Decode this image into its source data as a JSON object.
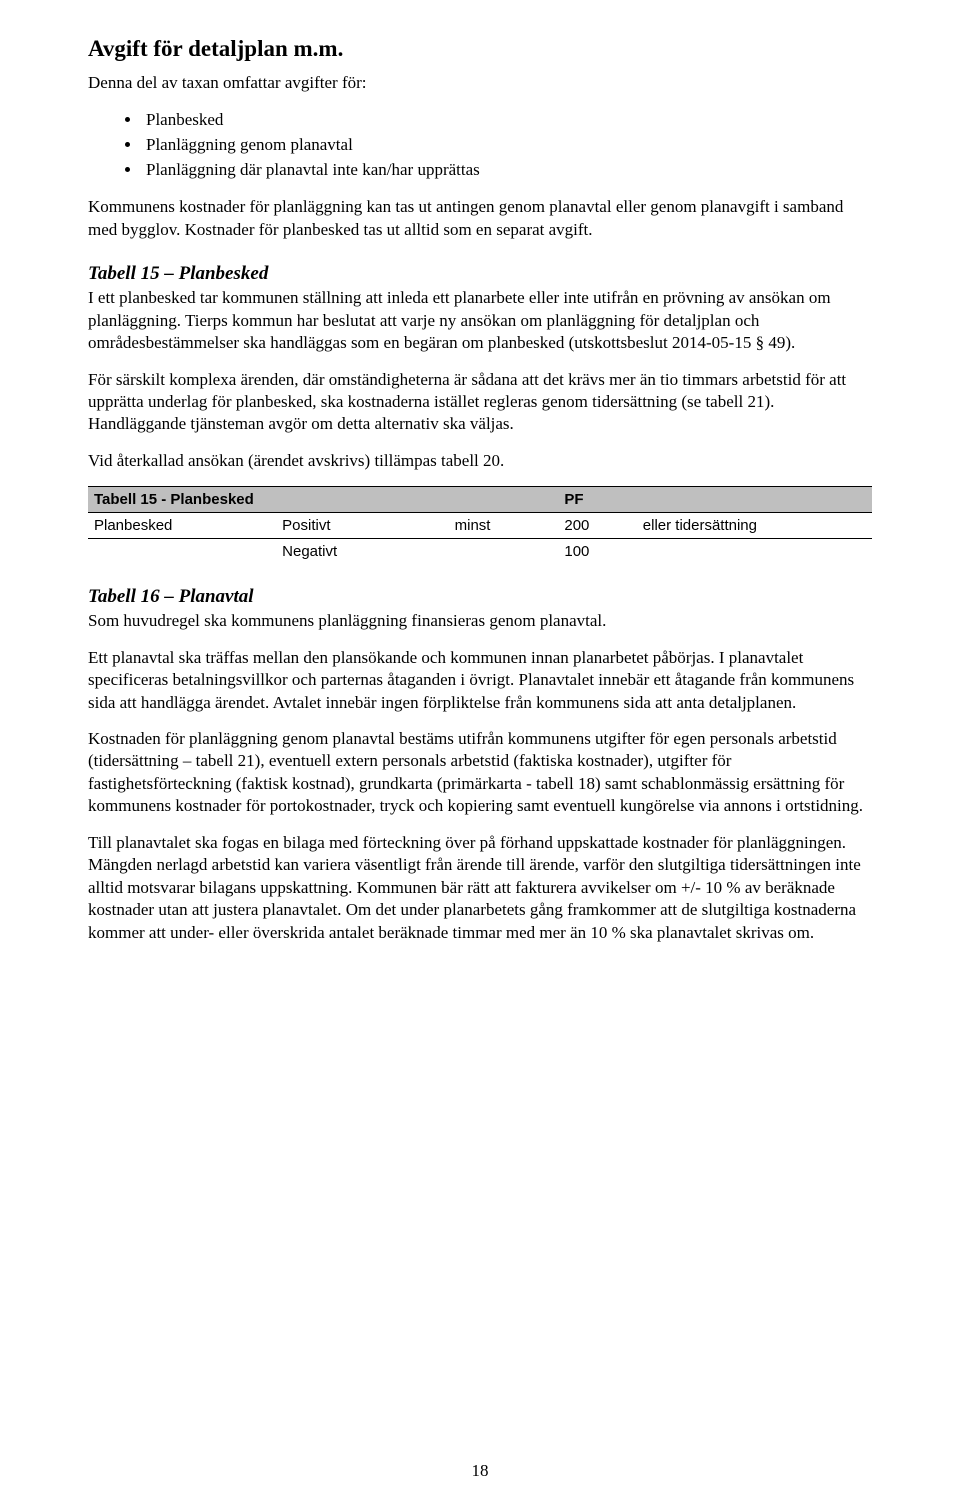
{
  "title": "Avgift för detaljplan m.m.",
  "intro": "Denna del av taxan omfattar avgifter för:",
  "bullets": [
    "Planbesked",
    "Planläggning genom planavtal",
    "Planläggning där planavtal inte kan/har upprättas"
  ],
  "para1": "Kommunens kostnader för planläggning kan tas ut antingen genom planavtal eller genom planavgift i samband med bygglov. Kostnader för planbesked tas ut alltid som en separat avgift.",
  "section15": {
    "heading": "Tabell 15 – Planbesked",
    "p1": "I ett planbesked tar kommunen ställning att inleda ett planarbete eller inte utifrån en prövning av ansökan om planläggning. Tierps kommun har beslutat att varje ny ansökan om planläggning för detaljplan och områdesbestämmelser ska handläggas som en begäran om planbesked (utskottsbeslut 2014-05-15 § 49).",
    "p2": "För särskilt komplexa ärenden, där omständigheterna är sådana att det krävs mer än tio timmars arbetstid för att upprätta underlag för planbesked, ska kostnaderna istället regleras genom tidersättning (se tabell 21). Handläggande tjänsteman avgör om detta alternativ ska väljas.",
    "p3": "Vid återkallad ansökan (ärendet avskrivs) tillämpas tabell 20."
  },
  "table15": {
    "header_label": "Tabell 15 - Planbesked",
    "header_pf": "PF",
    "rows": [
      {
        "label": "Planbesked",
        "variant": "Positivt",
        "minst": "minst",
        "pf": "200",
        "note": "eller tidersättning"
      },
      {
        "label": "",
        "variant": "Negativt",
        "minst": "",
        "pf": "100",
        "note": ""
      }
    ]
  },
  "section16": {
    "heading": "Tabell 16 – Planavtal",
    "p1": "Som huvudregel ska kommunens planläggning finansieras genom planavtal.",
    "p2": "Ett planavtal ska träffas mellan den plansökande och kommunen innan planarbetet påbörjas. I planavtalet specificeras betalningsvillkor och parternas åtaganden i övrigt. Planavtalet innebär ett åtagande från kommunens sida att handlägga ärendet. Avtalet innebär ingen förpliktelse från kommunens sida att anta detaljplanen.",
    "p3": "Kostnaden för planläggning genom planavtal bestäms utifrån kommunens utgifter för egen personals arbetstid (tidersättning – tabell 21), eventuell extern personals arbetstid (faktiska kostnader), utgifter för fastighetsförteckning (faktisk kostnad), grundkarta (primärkarta - tabell 18) samt schablonmässig ersättning för kommunens kostnader för portokostnader, tryck och kopiering samt eventuell kungörelse via annons i ortstidning.",
    "p4": "Till planavtalet ska fogas en bilaga med förteckning över på förhand uppskattade kostnader för planläggningen. Mängden nerlagd arbetstid kan variera väsentligt från ärende till ärende, varför den slutgiltiga tidersättningen inte alltid motsvarar bilagans uppskattning. Kommunen bär rätt att fakturera avvikelser om +/- 10 % av beräknade kostnader utan att justera planavtalet. Om det under planarbetets gång framkommer att de slutgiltiga kostnaderna kommer att under- eller överskrida antalet beräknade timmar med mer än 10 % ska planavtalet skrivas om."
  },
  "page_number": "18"
}
